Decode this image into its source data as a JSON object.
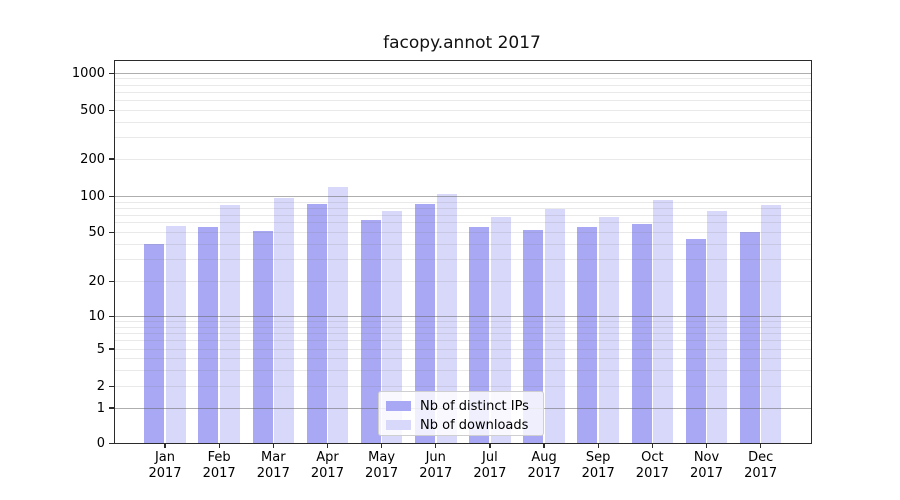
{
  "chart_data": {
    "type": "bar",
    "title": "facopy.annot 2017",
    "categories": [
      "Jan",
      "Feb",
      "Mar",
      "Apr",
      "May",
      "Jun",
      "Jul",
      "Aug",
      "Sep",
      "Oct",
      "Nov",
      "Dec"
    ],
    "year_label": "2017",
    "series": [
      {
        "name": "Nb of distinct IPs",
        "color": "#a8a8f4",
        "values": [
          40,
          55,
          51,
          87,
          63,
          87,
          55,
          52,
          55,
          59,
          44,
          50
        ]
      },
      {
        "name": "Nb of downloads",
        "color": "#d8d8fa",
        "values": [
          57,
          85,
          98,
          120,
          75,
          105,
          67,
          78,
          67,
          93,
          75,
          85
        ]
      }
    ],
    "yticks": [
      0,
      1,
      2,
      5,
      10,
      20,
      50,
      100,
      200,
      500,
      1000
    ],
    "ylim": [
      0,
      1200
    ],
    "yscale": "symlog",
    "grid": true,
    "legend_position": "lower center"
  }
}
